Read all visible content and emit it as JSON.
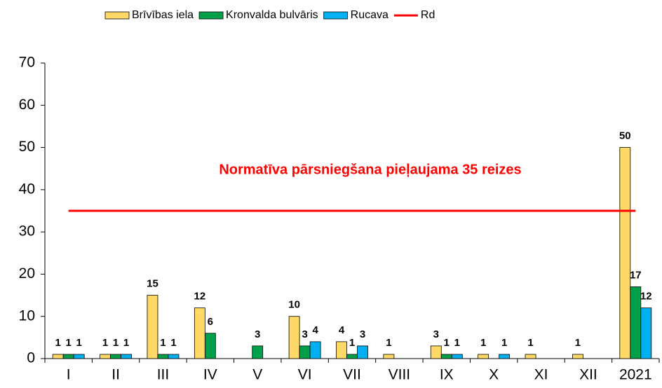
{
  "chart_data": {
    "type": "bar",
    "categories": [
      "I",
      "II",
      "III",
      "IV",
      "V",
      "VI",
      "VII",
      "VIII",
      "IX",
      "X",
      "XI",
      "XII",
      "2021"
    ],
    "series": [
      {
        "name": "Brīvības iela",
        "color": "#ffd966",
        "values": [
          1,
          1,
          15,
          12,
          null,
          10,
          4,
          1,
          3,
          1,
          1,
          1,
          50
        ]
      },
      {
        "name": "Kronvalda bulvāris",
        "color": "#00a04a",
        "values": [
          1,
          1,
          1,
          6,
          3,
          3,
          1,
          null,
          1,
          null,
          null,
          null,
          17
        ]
      },
      {
        "name": "Rucava",
        "color": "#00b0f0",
        "values": [
          1,
          1,
          1,
          null,
          null,
          4,
          3,
          null,
          1,
          1,
          null,
          null,
          12
        ]
      },
      {
        "name": "Rd",
        "type": "line",
        "color": "#ff0000",
        "values": [
          35,
          35,
          35,
          35,
          35,
          35,
          35,
          35,
          35,
          35,
          35,
          35,
          35
        ]
      }
    ],
    "annotation": "Normatīva pārsniegšana pieļaujama 35 reizes",
    "ylim": [
      0,
      70
    ],
    "yticks": [
      0,
      10,
      20,
      30,
      40,
      50,
      60,
      70
    ],
    "legend": "top"
  }
}
